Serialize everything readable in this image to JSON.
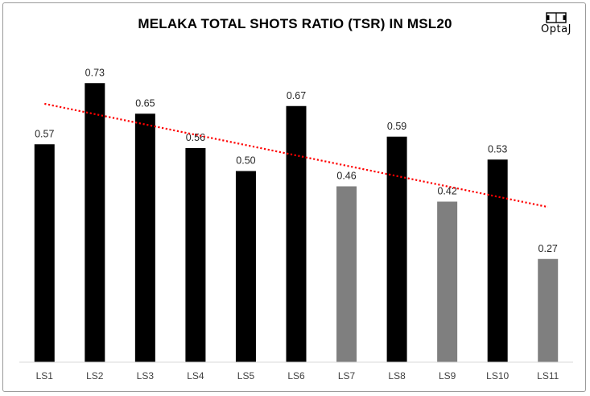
{
  "chart_data": {
    "type": "bar",
    "title": "MELAKA TOTAL SHOTS RATIO (TSR) IN MSL20",
    "categories": [
      "LS1",
      "LS2",
      "LS3",
      "LS4",
      "LS5",
      "LS6",
      "LS7",
      "LS8",
      "LS9",
      "LS10",
      "LS11"
    ],
    "values": [
      0.57,
      0.73,
      0.65,
      0.56,
      0.5,
      0.67,
      0.46,
      0.59,
      0.42,
      0.53,
      0.27
    ],
    "value_labels": [
      "0.57",
      "0.73",
      "0.65",
      "0.56",
      "0.50",
      "0.67",
      "0.46",
      "0.59",
      "0.42",
      "0.53",
      "0.27"
    ],
    "bar_colors": [
      "#000000",
      "#000000",
      "#000000",
      "#000000",
      "#000000",
      "#000000",
      "#7f7f7f",
      "#000000",
      "#7f7f7f",
      "#000000",
      "#7f7f7f"
    ],
    "trendline": {
      "type": "linear",
      "color": "#ff0000",
      "style": "dotted"
    },
    "ylim": [
      0,
      0.8
    ],
    "grid": false,
    "legend": "none",
    "xlabel": "",
    "ylabel": ""
  },
  "logo": {
    "text": "OptaJ",
    "icon": "football-pitch-icon"
  }
}
